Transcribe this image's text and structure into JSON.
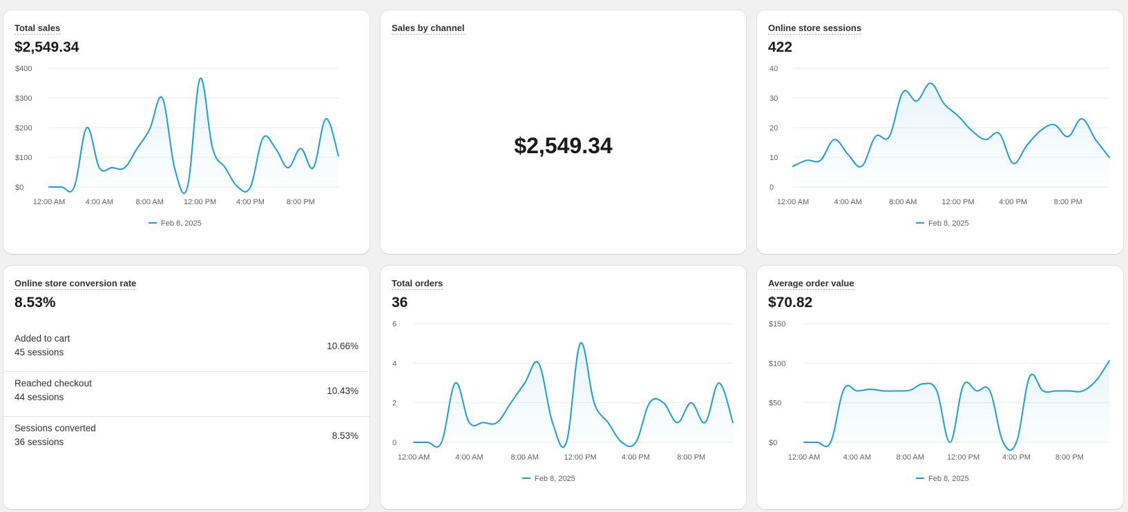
{
  "colors": {
    "line": "#1a9dd9",
    "grid": "#ebebeb",
    "axis_text": "#616161"
  },
  "x_ticks": [
    "12:00 AM",
    "4:00 AM",
    "8:00 AM",
    "12:00 PM",
    "4:00 PM",
    "8:00 PM"
  ],
  "legend": "Feb 8, 2025",
  "cards": {
    "total_sales": {
      "title": "Total sales",
      "value": "$2,549.34"
    },
    "sales_by_channel": {
      "title": "Sales by channel",
      "value": "$2,549.34"
    },
    "sessions": {
      "title": "Online store sessions",
      "value": "422"
    },
    "conversion": {
      "title": "Online store conversion rate",
      "value": "8.53%",
      "rows": [
        {
          "label": "Added to cart",
          "sessions": "45 sessions",
          "pct": "10.66%"
        },
        {
          "label": "Reached checkout",
          "sessions": "44 sessions",
          "pct": "10.43%"
        },
        {
          "label": "Sessions converted",
          "sessions": "36 sessions",
          "pct": "8.53%"
        }
      ]
    },
    "orders": {
      "title": "Total orders",
      "value": "36"
    },
    "aov": {
      "title": "Average order value",
      "value": "$70.82"
    }
  },
  "chart_data": [
    {
      "id": "total_sales",
      "type": "area",
      "title": "Total sales",
      "x_labels": [
        "12:00 AM",
        "4:00 AM",
        "8:00 AM",
        "12:00 PM",
        "4:00 PM",
        "8:00 PM"
      ],
      "y_ticks": [
        "$0",
        "$100",
        "$200",
        "$300",
        "$400"
      ],
      "ylim": [
        0,
        400
      ],
      "series": [
        {
          "name": "Feb 8, 2025",
          "values": [
            0,
            0,
            0,
            200,
            65,
            65,
            65,
            130,
            195,
            300,
            60,
            0,
            365,
            130,
            65,
            0,
            0,
            165,
            130,
            65,
            130,
            65,
            230,
            105
          ]
        }
      ]
    },
    {
      "id": "sessions",
      "type": "area",
      "title": "Online store sessions",
      "x_labels": [
        "12:00 AM",
        "4:00 AM",
        "8:00 AM",
        "12:00 PM",
        "4:00 PM",
        "8:00 PM"
      ],
      "y_ticks": [
        "0",
        "10",
        "20",
        "30",
        "40"
      ],
      "ylim": [
        0,
        40
      ],
      "series": [
        {
          "name": "Feb 8, 2025",
          "values": [
            7,
            9,
            9,
            16,
            11,
            7,
            17,
            17,
            32,
            29,
            35,
            28,
            24,
            19,
            16,
            18,
            8,
            14,
            19,
            21,
            17,
            23,
            16,
            10
          ]
        }
      ]
    },
    {
      "id": "orders",
      "type": "area",
      "title": "Total orders",
      "x_labels": [
        "12:00 AM",
        "4:00 AM",
        "8:00 AM",
        "12:00 PM",
        "4:00 PM",
        "8:00 PM"
      ],
      "y_ticks": [
        "0",
        "2",
        "4",
        "6"
      ],
      "ylim": [
        0,
        6
      ],
      "series": [
        {
          "name": "Feb 8, 2025",
          "values": [
            0,
            0,
            0,
            3,
            1,
            1,
            1,
            2,
            3,
            4,
            1,
            0,
            5,
            2,
            1,
            0,
            0,
            2,
            2,
            1,
            2,
            1,
            3,
            1
          ]
        }
      ]
    },
    {
      "id": "aov",
      "type": "area",
      "title": "Average order value",
      "x_labels": [
        "12:00 AM",
        "4:00 AM",
        "8:00 AM",
        "12:00 PM",
        "4:00 PM",
        "8:00 PM"
      ],
      "y_ticks": [
        "$0",
        "$50",
        "$100",
        "$150"
      ],
      "ylim": [
        0,
        150
      ],
      "series": [
        {
          "name": "Feb 8, 2025",
          "values": [
            0,
            0,
            0,
            67,
            65,
            67,
            65,
            65,
            66,
            74,
            65,
            0,
            72,
            65,
            65,
            0,
            0,
            83,
            65,
            65,
            65,
            65,
            78,
            103
          ]
        }
      ]
    }
  ]
}
